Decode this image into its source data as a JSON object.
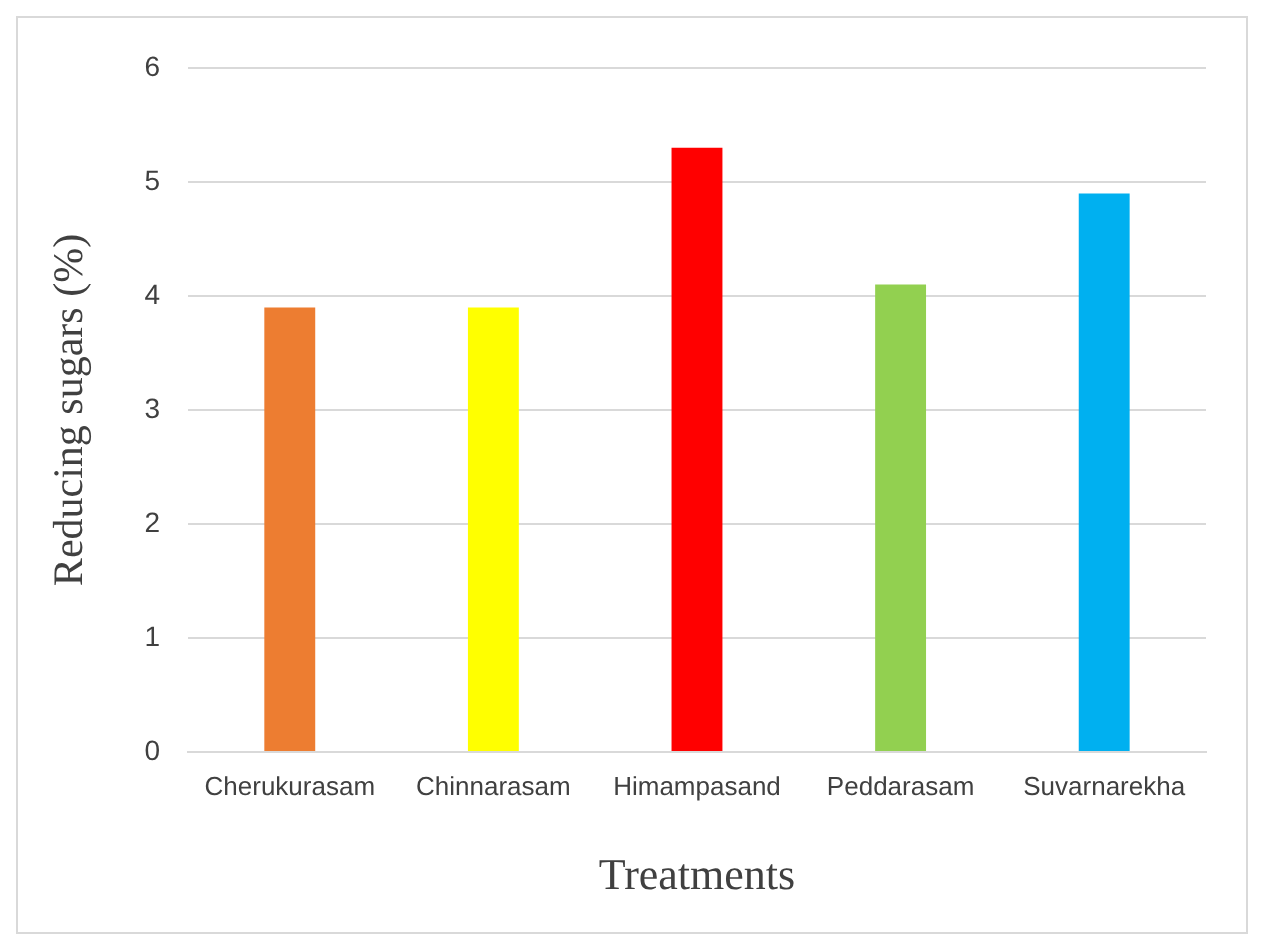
{
  "chart_data": {
    "type": "bar",
    "xlabel": "Treatments",
    "ylabel": "Reducing sugars (%)",
    "categories": [
      "Cherukurasam",
      "Chinnarasam",
      "Himampasand",
      "Peddarasam",
      "Suvarnarekha"
    ],
    "values": [
      3.9,
      3.9,
      5.3,
      4.1,
      4.9
    ],
    "colors": [
      "#ed7d31",
      "#ffff00",
      "#ff0000",
      "#92d050",
      "#00b0f0"
    ],
    "ylim": [
      0,
      6
    ],
    "yticks": [
      0,
      1,
      2,
      3,
      4,
      5,
      6
    ],
    "grid": "y"
  }
}
